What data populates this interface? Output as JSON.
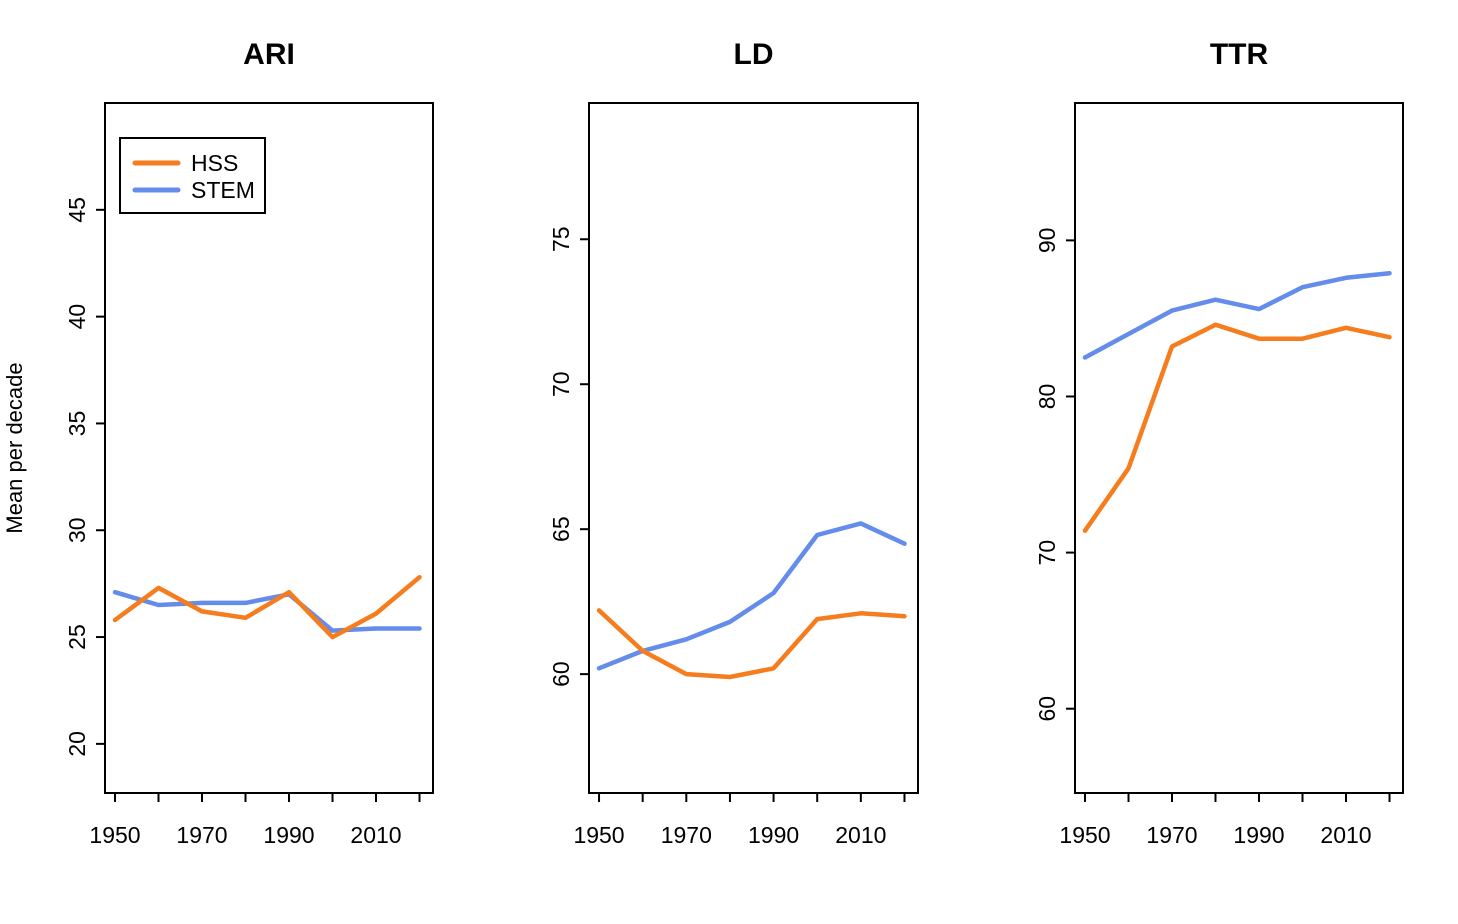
{
  "figure": {
    "ylabel": "Mean per decade",
    "background_color": "#ffffff",
    "axis_color": "#000000",
    "legend": {
      "position": "top-left-of-first-panel",
      "entries": [
        {
          "label": "HSS",
          "color": "#F57D1E"
        },
        {
          "label": "STEM",
          "color": "#648CEB"
        }
      ]
    }
  },
  "chart_data": [
    {
      "type": "line",
      "title": "ARI",
      "x": [
        1950,
        1960,
        1970,
        1980,
        1990,
        2000,
        2010,
        2020
      ],
      "xticks": [
        1950,
        1960,
        1970,
        1980,
        1990,
        2000,
        2010,
        2020
      ],
      "xtick_labels": [
        "1950",
        "1970",
        "1990",
        "2010"
      ],
      "xtick_label_years": [
        1950,
        1970,
        1990,
        2010
      ],
      "xlim": [
        1947.7,
        2023.1
      ],
      "ylim": [
        17.7,
        50.0
      ],
      "yticks": [
        20,
        25,
        30,
        35,
        40,
        45
      ],
      "grid": false,
      "series": [
        {
          "name": "HSS",
          "color": "#F57D1E",
          "values": [
            25.8,
            27.3,
            26.2,
            25.9,
            27.1,
            25.0,
            26.1,
            27.8
          ]
        },
        {
          "name": "STEM",
          "color": "#648CEB",
          "values": [
            27.1,
            26.5,
            26.6,
            26.6,
            27.0,
            25.3,
            25.4,
            25.4
          ]
        }
      ]
    },
    {
      "type": "line",
      "title": "LD",
      "x": [
        1950,
        1960,
        1970,
        1980,
        1990,
        2000,
        2010,
        2020
      ],
      "xticks": [
        1950,
        1960,
        1970,
        1980,
        1990,
        2000,
        2010,
        2020
      ],
      "xtick_labels": [
        "1950",
        "1970",
        "1990",
        "2010"
      ],
      "xtick_label_years": [
        1950,
        1970,
        1990,
        2010
      ],
      "xlim": [
        1947.7,
        2023.1
      ],
      "ylim": [
        55.9,
        79.7
      ],
      "yticks": [
        60,
        65,
        70,
        75
      ],
      "grid": false,
      "series": [
        {
          "name": "HSS",
          "color": "#F57D1E",
          "values": [
            62.2,
            60.8,
            60.0,
            59.9,
            60.2,
            61.9,
            62.1,
            62.0
          ]
        },
        {
          "name": "STEM",
          "color": "#648CEB",
          "values": [
            60.2,
            60.8,
            61.2,
            61.8,
            62.8,
            64.8,
            65.2,
            64.5
          ]
        }
      ]
    },
    {
      "type": "line",
      "title": "TTR",
      "x": [
        1950,
        1960,
        1970,
        1980,
        1990,
        2000,
        2010,
        2020
      ],
      "xticks": [
        1950,
        1960,
        1970,
        1980,
        1990,
        2000,
        2010,
        2020
      ],
      "xtick_labels": [
        "1950",
        "1970",
        "1990",
        "2010"
      ],
      "xtick_label_years": [
        1950,
        1970,
        1990,
        2010
      ],
      "xlim": [
        1947.7,
        2023.1
      ],
      "ylim": [
        54.6,
        98.8
      ],
      "yticks": [
        60,
        70,
        80,
        90
      ],
      "grid": false,
      "series": [
        {
          "name": "HSS",
          "color": "#F57D1E",
          "values": [
            71.4,
            75.4,
            83.2,
            84.6,
            83.7,
            83.7,
            84.4,
            83.8
          ]
        },
        {
          "name": "STEM",
          "color": "#648CEB",
          "values": [
            82.5,
            84.0,
            85.5,
            86.2,
            85.6,
            87.0,
            87.6,
            87.9
          ]
        }
      ]
    }
  ]
}
